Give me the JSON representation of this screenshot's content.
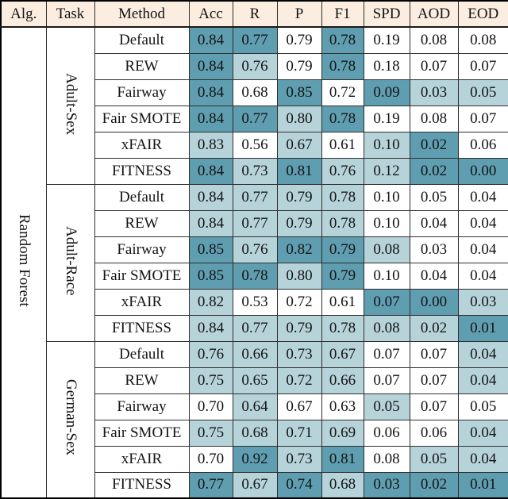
{
  "table": {
    "headers": [
      "Alg.",
      "Task",
      "Method",
      "Acc",
      "R",
      "P",
      "F1",
      "SPD",
      "AOD",
      "EOD"
    ],
    "alg_label": "Random Forest",
    "colors": {
      "header_bg": "#fbeee0",
      "cell_dark_teal": "#5f9eb0",
      "cell_light_teal": "#b6d3da",
      "cell_white": "#ffffff"
    },
    "groups": [
      {
        "task": "Adult-Sex",
        "rows": [
          {
            "method": "Default",
            "values": [
              "0.84",
              "0.77",
              "0.79",
              "0.78",
              "0.19",
              "0.08",
              "0.08"
            ],
            "shades": [
              "d",
              "d",
              "w",
              "d",
              "w",
              "w",
              "w"
            ]
          },
          {
            "method": "REW",
            "values": [
              "0.84",
              "0.76",
              "0.79",
              "0.78",
              "0.18",
              "0.07",
              "0.07"
            ],
            "shades": [
              "d",
              "l",
              "w",
              "d",
              "w",
              "w",
              "w"
            ]
          },
          {
            "method": "Fairway",
            "values": [
              "0.84",
              "0.68",
              "0.85",
              "0.72",
              "0.09",
              "0.03",
              "0.05"
            ],
            "shades": [
              "d",
              "w",
              "d",
              "w",
              "d",
              "l",
              "l"
            ]
          },
          {
            "method": "Fair SMOTE",
            "values": [
              "0.84",
              "0.77",
              "0.80",
              "0.78",
              "0.19",
              "0.08",
              "0.07"
            ],
            "shades": [
              "d",
              "d",
              "l",
              "d",
              "w",
              "w",
              "w"
            ]
          },
          {
            "method": "xFAIR",
            "values": [
              "0.83",
              "0.56",
              "0.67",
              "0.61",
              "0.10",
              "0.02",
              "0.06"
            ],
            "shades": [
              "l",
              "w",
              "l",
              "w",
              "l",
              "d",
              "w"
            ]
          },
          {
            "method": "FITNESS",
            "values": [
              "0.84",
              "0.73",
              "0.81",
              "0.76",
              "0.12",
              "0.02",
              "0.00"
            ],
            "shades": [
              "d",
              "l",
              "d",
              "l",
              "l",
              "d",
              "d"
            ]
          }
        ]
      },
      {
        "task": "Adult-Race",
        "rows": [
          {
            "method": "Default",
            "values": [
              "0.84",
              "0.77",
              "0.79",
              "0.78",
              "0.10",
              "0.05",
              "0.04"
            ],
            "shades": [
              "l",
              "l",
              "l",
              "l",
              "w",
              "w",
              "w"
            ]
          },
          {
            "method": "REW",
            "values": [
              "0.84",
              "0.77",
              "0.79",
              "0.78",
              "0.10",
              "0.04",
              "0.04"
            ],
            "shades": [
              "l",
              "l",
              "l",
              "l",
              "w",
              "w",
              "w"
            ]
          },
          {
            "method": "Fairway",
            "values": [
              "0.85",
              "0.76",
              "0.82",
              "0.79",
              "0.08",
              "0.03",
              "0.04"
            ],
            "shades": [
              "d",
              "l",
              "d",
              "d",
              "l",
              "w",
              "w"
            ]
          },
          {
            "method": "Fair SMOTE",
            "values": [
              "0.85",
              "0.78",
              "0.80",
              "0.79",
              "0.10",
              "0.04",
              "0.04"
            ],
            "shades": [
              "d",
              "d",
              "l",
              "d",
              "w",
              "w",
              "w"
            ]
          },
          {
            "method": "xFAIR",
            "values": [
              "0.82",
              "0.53",
              "0.72",
              "0.61",
              "0.07",
              "0.00",
              "0.03"
            ],
            "shades": [
              "l",
              "w",
              "w",
              "w",
              "d",
              "d",
              "l"
            ]
          },
          {
            "method": "FITNESS",
            "values": [
              "0.84",
              "0.77",
              "0.79",
              "0.78",
              "0.08",
              "0.02",
              "0.01"
            ],
            "shades": [
              "l",
              "l",
              "l",
              "l",
              "l",
              "l",
              "d"
            ]
          }
        ]
      },
      {
        "task": "German-Sex",
        "rows": [
          {
            "method": "Default",
            "values": [
              "0.76",
              "0.66",
              "0.73",
              "0.67",
              "0.07",
              "0.07",
              "0.04"
            ],
            "shades": [
              "l",
              "l",
              "l",
              "l",
              "w",
              "w",
              "l"
            ]
          },
          {
            "method": "REW",
            "values": [
              "0.75",
              "0.65",
              "0.72",
              "0.66",
              "0.07",
              "0.07",
              "0.04"
            ],
            "shades": [
              "l",
              "l",
              "l",
              "l",
              "w",
              "w",
              "l"
            ]
          },
          {
            "method": "Fairway",
            "values": [
              "0.70",
              "0.64",
              "0.67",
              "0.63",
              "0.05",
              "0.07",
              "0.05"
            ],
            "shades": [
              "w",
              "l",
              "w",
              "w",
              "l",
              "w",
              "w"
            ]
          },
          {
            "method": "Fair SMOTE",
            "values": [
              "0.75",
              "0.68",
              "0.71",
              "0.69",
              "0.06",
              "0.06",
              "0.04"
            ],
            "shades": [
              "l",
              "l",
              "l",
              "l",
              "w",
              "w",
              "l"
            ]
          },
          {
            "method": "xFAIR",
            "values": [
              "0.70",
              "0.92",
              "0.73",
              "0.81",
              "0.08",
              "0.05",
              "0.04"
            ],
            "shades": [
              "w",
              "d",
              "l",
              "d",
              "w",
              "l",
              "l"
            ]
          },
          {
            "method": "FITNESS",
            "values": [
              "0.77",
              "0.67",
              "0.74",
              "0.68",
              "0.03",
              "0.02",
              "0.01"
            ],
            "shades": [
              "d",
              "l",
              "d",
              "l",
              "d",
              "d",
              "d"
            ]
          }
        ]
      }
    ]
  }
}
